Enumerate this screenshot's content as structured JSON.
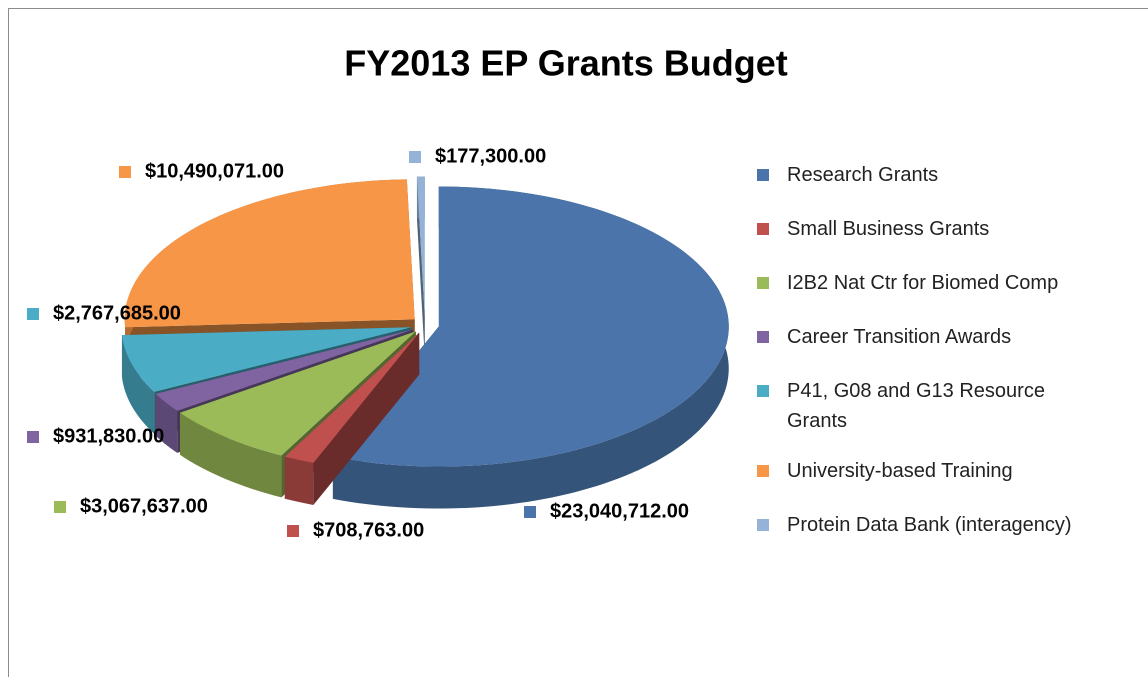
{
  "chart_data": {
    "type": "pie",
    "title": "FY2013 EP Grants Budget",
    "categories": [
      "Research Grants",
      "Small Business Grants",
      "I2B2 Nat Ctr for Biomed Comp",
      "Career Transition Awards",
      "P41, G08 and G13 Resource Grants",
      "University-based Training",
      "Protein Data Bank (interagency)"
    ],
    "values": [
      23040712,
      708763,
      3067637,
      931830,
      2767685,
      10490071,
      177300
    ],
    "value_labels": [
      "$23,040,712.00",
      "$708,763.00",
      "$3,067,637.00",
      "$931,830.00",
      "$2,767,685.00",
      "$10,490,071.00",
      "$177,300.00"
    ],
    "colors": [
      "#4a74aa",
      "#c0504d",
      "#9bbb59",
      "#8064a2",
      "#4bacc6",
      "#f79646",
      "#95b3d7"
    ],
    "legend": "right"
  }
}
